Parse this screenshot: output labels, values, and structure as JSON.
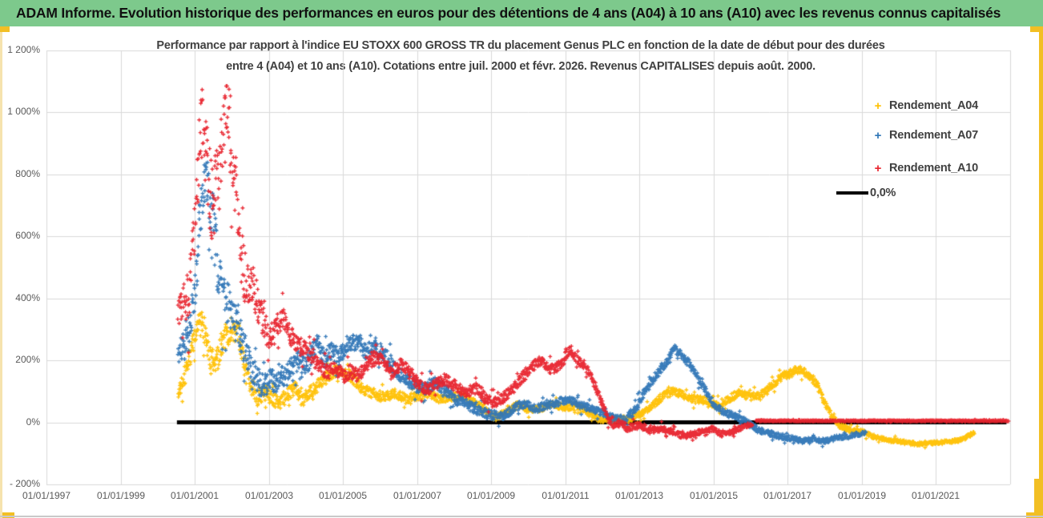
{
  "header": {
    "title": "ADAM Informe. Evolution historique des performances en euros pour des détentions de 4 ans (A04) à 10 ans (A10) avec les revenus connus capitalisés",
    "bg_color": "#7dc98c"
  },
  "legend": {
    "items": [
      {
        "label": "Rendement_A04",
        "marker": "+",
        "color": "#FFC000"
      },
      {
        "label": "Rendement_A07",
        "marker": "+",
        "color": "#2E75B6"
      },
      {
        "label": "Rendement_A10",
        "marker": "+",
        "color": "#E8232D"
      },
      {
        "label": "0,0%",
        "marker": "line",
        "color": "#000000"
      }
    ]
  },
  "chart_data": {
    "type": "scatter",
    "title_line1": "Performance par rapport à l'indice EU STOXX 600 GROSS TR  du placement Genus PLC en fonction de la date de début pour des durées",
    "title_line2": "entre 4 (A04) et 10 ans (A10).  Cotations entre juil. 2000 et févr. 2026.  Revenus CAPITALISES depuis août. 2000.",
    "x_axis": {
      "start_year": 1997,
      "end_year": 2023,
      "gridline_step_years": 2,
      "tick_labels": [
        "01/01/1997",
        "01/01/1999",
        "01/01/2001",
        "01/01/2003",
        "01/01/2005",
        "01/01/2007",
        "01/01/2009",
        "01/01/2011",
        "01/01/2013",
        "01/01/2015",
        "01/01/2017",
        "01/01/2019",
        "01/01/2021"
      ]
    },
    "y_axis": {
      "min": -200,
      "max": 1200,
      "step": 200,
      "unit": "%",
      "tick_labels": [
        "1 200%",
        "1 000%",
        "800%",
        "600%",
        "400%",
        "200%",
        "0%",
        "- 200%"
      ]
    },
    "grid_color": "#d9d9d9",
    "zero_line": {
      "label": "0,0%",
      "value": 0,
      "from": 2000.52,
      "to": 2022.9,
      "color": "#000000",
      "width": 5
    },
    "series": [
      {
        "name": "Rendement_A04",
        "color": "#FFC000",
        "anchors": [
          [
            2000.55,
            95
          ],
          [
            2000.7,
            140
          ],
          [
            2000.85,
            200
          ],
          [
            2001.0,
            260
          ],
          [
            2001.1,
            330
          ],
          [
            2001.25,
            300
          ],
          [
            2001.4,
            220
          ],
          [
            2001.55,
            170
          ],
          [
            2001.7,
            250
          ],
          [
            2001.85,
            280
          ],
          [
            2002.0,
            300
          ],
          [
            2002.15,
            305
          ],
          [
            2002.3,
            200
          ],
          [
            2002.5,
            120
          ],
          [
            2002.7,
            80
          ],
          [
            2002.9,
            95
          ],
          [
            2003.1,
            75
          ],
          [
            2003.3,
            60
          ],
          [
            2003.5,
            90
          ],
          [
            2003.7,
            110
          ],
          [
            2003.9,
            70
          ],
          [
            2004.1,
            95
          ],
          [
            2004.4,
            130
          ],
          [
            2004.7,
            160
          ],
          [
            2004.95,
            170
          ],
          [
            2005.2,
            150
          ],
          [
            2005.5,
            110
          ],
          [
            2005.8,
            95
          ],
          [
            2006.1,
            80
          ],
          [
            2006.4,
            95
          ],
          [
            2006.7,
            75
          ],
          [
            2007.0,
            85
          ],
          [
            2007.3,
            95
          ],
          [
            2007.6,
            75
          ],
          [
            2007.9,
            80
          ],
          [
            2008.2,
            85
          ],
          [
            2008.5,
            70
          ],
          [
            2008.8,
            45
          ],
          [
            2009.1,
            15
          ],
          [
            2009.4,
            35
          ],
          [
            2009.7,
            55
          ],
          [
            2010.0,
            40
          ],
          [
            2010.3,
            45
          ],
          [
            2010.7,
            60
          ],
          [
            2011.0,
            45
          ],
          [
            2011.3,
            55
          ],
          [
            2011.6,
            35
          ],
          [
            2011.9,
            10
          ],
          [
            2012.2,
            5
          ],
          [
            2012.5,
            10
          ],
          [
            2012.8,
            15
          ],
          [
            2013.1,
            30
          ],
          [
            2013.4,
            60
          ],
          [
            2013.7,
            90
          ],
          [
            2013.95,
            100
          ],
          [
            2014.2,
            85
          ],
          [
            2014.5,
            75
          ],
          [
            2014.8,
            70
          ],
          [
            2015.1,
            55
          ],
          [
            2015.4,
            75
          ],
          [
            2015.7,
            95
          ],
          [
            2016.0,
            80
          ],
          [
            2016.3,
            90
          ],
          [
            2016.6,
            120
          ],
          [
            2016.9,
            150
          ],
          [
            2017.1,
            160
          ],
          [
            2017.35,
            170
          ],
          [
            2017.6,
            150
          ],
          [
            2017.8,
            120
          ],
          [
            2018.0,
            60
          ],
          [
            2018.2,
            20
          ],
          [
            2018.4,
            -10
          ],
          [
            2018.7,
            -25
          ],
          [
            2019.0,
            -30
          ],
          [
            2019.3,
            -45
          ],
          [
            2019.6,
            -55
          ],
          [
            2019.9,
            -60
          ],
          [
            2020.2,
            -65
          ],
          [
            2020.5,
            -70
          ],
          [
            2020.8,
            -68
          ],
          [
            2021.1,
            -65
          ],
          [
            2021.4,
            -62
          ],
          [
            2021.7,
            -55
          ],
          [
            2021.9,
            -42
          ],
          [
            2022.05,
            -30
          ]
        ],
        "noise": [
          [
            2000.5,
            25
          ],
          [
            2001.0,
            45
          ],
          [
            2001.5,
            50
          ],
          [
            2002.2,
            45
          ],
          [
            2003.0,
            25
          ],
          [
            2005.0,
            22
          ],
          [
            2007.0,
            15
          ],
          [
            2009.0,
            12
          ],
          [
            2011.0,
            12
          ],
          [
            2013.0,
            12
          ],
          [
            2014.0,
            14
          ],
          [
            2016.0,
            14
          ],
          [
            2017.0,
            15
          ],
          [
            2018.0,
            12
          ],
          [
            2019.0,
            8
          ],
          [
            2020.0,
            7
          ],
          [
            2022.05,
            7
          ]
        ]
      },
      {
        "name": "Rendement_A07",
        "color": "#2E75B6",
        "anchors": [
          [
            2000.55,
            210
          ],
          [
            2000.7,
            260
          ],
          [
            2000.85,
            300
          ],
          [
            2001.0,
            420
          ],
          [
            2001.15,
            650
          ],
          [
            2001.3,
            820
          ],
          [
            2001.45,
            700
          ],
          [
            2001.6,
            520
          ],
          [
            2001.75,
            420
          ],
          [
            2001.9,
            380
          ],
          [
            2002.05,
            330
          ],
          [
            2002.2,
            300
          ],
          [
            2002.4,
            220
          ],
          [
            2002.6,
            160
          ],
          [
            2002.8,
            120
          ],
          [
            2003.0,
            140
          ],
          [
            2003.2,
            130
          ],
          [
            2003.5,
            160
          ],
          [
            2003.8,
            200
          ],
          [
            2004.0,
            180
          ],
          [
            2004.3,
            260
          ],
          [
            2004.5,
            200
          ],
          [
            2004.7,
            230
          ],
          [
            2004.9,
            210
          ],
          [
            2005.1,
            250
          ],
          [
            2005.35,
            260
          ],
          [
            2005.6,
            230
          ],
          [
            2005.85,
            250
          ],
          [
            2006.1,
            220
          ],
          [
            2006.35,
            180
          ],
          [
            2006.6,
            150
          ],
          [
            2006.9,
            120
          ],
          [
            2007.2,
            110
          ],
          [
            2007.5,
            130
          ],
          [
            2007.8,
            100
          ],
          [
            2008.1,
            70
          ],
          [
            2008.4,
            55
          ],
          [
            2008.7,
            35
          ],
          [
            2009.0,
            25
          ],
          [
            2009.3,
            20
          ],
          [
            2009.6,
            45
          ],
          [
            2009.9,
            60
          ],
          [
            2010.2,
            45
          ],
          [
            2010.5,
            55
          ],
          [
            2010.8,
            65
          ],
          [
            2011.1,
            75
          ],
          [
            2011.4,
            55
          ],
          [
            2011.7,
            45
          ],
          [
            2012.0,
            30
          ],
          [
            2012.3,
            15
          ],
          [
            2012.6,
            5
          ],
          [
            2012.9,
            45
          ],
          [
            2013.2,
            110
          ],
          [
            2013.5,
            160
          ],
          [
            2013.75,
            200
          ],
          [
            2013.95,
            240
          ],
          [
            2014.15,
            215
          ],
          [
            2014.4,
            180
          ],
          [
            2014.7,
            120
          ],
          [
            2015.0,
            60
          ],
          [
            2015.3,
            30
          ],
          [
            2015.6,
            20
          ],
          [
            2015.9,
            0
          ],
          [
            2016.2,
            -25
          ],
          [
            2016.5,
            -35
          ],
          [
            2016.8,
            -45
          ],
          [
            2017.1,
            -50
          ],
          [
            2017.4,
            -60
          ],
          [
            2017.7,
            -55
          ],
          [
            2018.0,
            -60
          ],
          [
            2018.3,
            -50
          ],
          [
            2018.6,
            -45
          ],
          [
            2018.9,
            -38
          ],
          [
            2019.1,
            -30
          ]
        ],
        "noise": [
          [
            2000.5,
            35
          ],
          [
            2001.2,
            90
          ],
          [
            2001.5,
            110
          ],
          [
            2002.0,
            70
          ],
          [
            2003.0,
            40
          ],
          [
            2004.0,
            35
          ],
          [
            2006.0,
            30
          ],
          [
            2008.0,
            20
          ],
          [
            2010.0,
            15
          ],
          [
            2012.0,
            12
          ],
          [
            2013.5,
            18
          ],
          [
            2015.0,
            12
          ],
          [
            2017.0,
            10
          ],
          [
            2019.1,
            8
          ]
        ]
      },
      {
        "name": "Rendement_A10",
        "color": "#E8232D",
        "anchors": [
          [
            2000.55,
            360
          ],
          [
            2000.7,
            390
          ],
          [
            2000.85,
            420
          ],
          [
            2001.0,
            600
          ],
          [
            2001.1,
            850
          ],
          [
            2001.2,
            960
          ],
          [
            2001.35,
            800
          ],
          [
            2001.5,
            700
          ],
          [
            2001.65,
            780
          ],
          [
            2001.8,
            950
          ],
          [
            2001.9,
            1030
          ],
          [
            2002.0,
            880
          ],
          [
            2002.1,
            760
          ],
          [
            2002.25,
            560
          ],
          [
            2002.4,
            430
          ],
          [
            2002.55,
            450
          ],
          [
            2002.7,
            380
          ],
          [
            2002.85,
            320
          ],
          [
            2003.0,
            270
          ],
          [
            2003.2,
            300
          ],
          [
            2003.4,
            330
          ],
          [
            2003.6,
            280
          ],
          [
            2003.8,
            250
          ],
          [
            2004.0,
            230
          ],
          [
            2004.2,
            210
          ],
          [
            2004.4,
            180
          ],
          [
            2004.6,
            160
          ],
          [
            2004.8,
            175
          ],
          [
            2005.0,
            150
          ],
          [
            2005.2,
            165
          ],
          [
            2005.4,
            150
          ],
          [
            2005.6,
            185
          ],
          [
            2005.9,
            215
          ],
          [
            2006.1,
            190
          ],
          [
            2006.3,
            160
          ],
          [
            2006.55,
            185
          ],
          [
            2006.8,
            160
          ],
          [
            2007.0,
            130
          ],
          [
            2007.25,
            105
          ],
          [
            2007.5,
            120
          ],
          [
            2007.75,
            140
          ],
          [
            2008.0,
            120
          ],
          [
            2008.3,
            95
          ],
          [
            2008.6,
            110
          ],
          [
            2008.9,
            70
          ],
          [
            2009.2,
            65
          ],
          [
            2009.5,
            100
          ],
          [
            2009.8,
            140
          ],
          [
            2010.1,
            180
          ],
          [
            2010.35,
            200
          ],
          [
            2010.6,
            170
          ],
          [
            2010.85,
            185
          ],
          [
            2011.1,
            230
          ],
          [
            2011.35,
            200
          ],
          [
            2011.6,
            170
          ],
          [
            2011.8,
            120
          ],
          [
            2012.0,
            60
          ],
          [
            2012.15,
            10
          ],
          [
            2012.3,
            -10
          ],
          [
            2012.5,
            -5
          ],
          [
            2012.7,
            -20
          ],
          [
            2012.9,
            -10
          ],
          [
            2013.1,
            -15
          ],
          [
            2013.3,
            -25
          ],
          [
            2013.6,
            -20
          ],
          [
            2013.9,
            -30
          ],
          [
            2014.2,
            -45
          ],
          [
            2014.5,
            -35
          ],
          [
            2014.8,
            -25
          ],
          [
            2015.0,
            -20
          ],
          [
            2015.2,
            -40
          ],
          [
            2015.5,
            -30
          ],
          [
            2015.8,
            -15
          ],
          [
            2016.05,
            -5
          ]
        ],
        "noise": [
          [
            2000.5,
            40
          ],
          [
            2001.0,
            120
          ],
          [
            2001.5,
            160
          ],
          [
            2002.0,
            150
          ],
          [
            2002.5,
            80
          ],
          [
            2003.0,
            50
          ],
          [
            2004.0,
            30
          ],
          [
            2006.0,
            25
          ],
          [
            2008.0,
            20
          ],
          [
            2010.0,
            20
          ],
          [
            2012.0,
            15
          ],
          [
            2013.0,
            12
          ],
          [
            2016.05,
            8
          ]
        ],
        "flat_tail": {
          "from": 2016.15,
          "to": 2022.95,
          "value": 5,
          "noise": 2
        }
      }
    ]
  }
}
